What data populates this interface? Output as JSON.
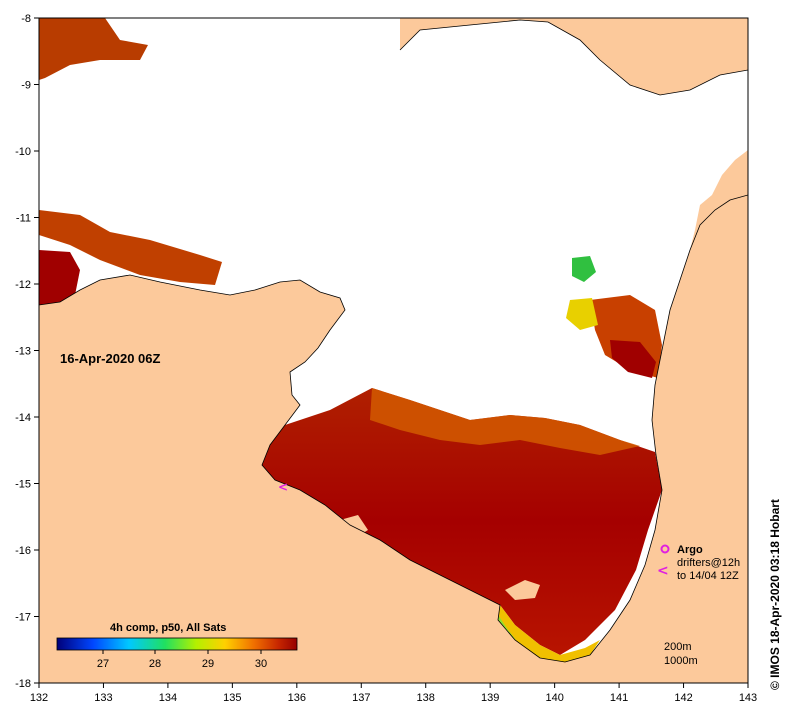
{
  "map": {
    "date_label": "16-Apr-2020 06Z",
    "lon_ticks": [
      "132",
      "133",
      "134",
      "135",
      "136",
      "137",
      "138",
      "139",
      "140",
      "141",
      "142",
      "143"
    ],
    "lat_ticks": [
      "-8",
      "-9",
      "-10",
      "-11",
      "-12",
      "-13",
      "-14",
      "-15",
      "-16",
      "-17",
      "-18"
    ],
    "lon_range": [
      132,
      143
    ],
    "lat_range": [
      -18,
      -8
    ],
    "colors": {
      "land": "#fcc99b",
      "sst_hot": "#a80000",
      "sst_warm": "#c83c00",
      "sst_mid": "#e06a00",
      "sst_cool": "#f0b400",
      "cloud": "#ffffff"
    }
  },
  "colorbar": {
    "title": "4h comp, p50, All Sats",
    "ticks": [
      "27",
      "28",
      "29",
      "30"
    ]
  },
  "legend": {
    "argo": "Argo",
    "drifters": "drifters@12h",
    "drifters_to": "to 14/04 12Z",
    "contour_200": "200m",
    "contour_1000": "1000m"
  },
  "credit": "© IMOS 18-Apr-2020 03:18 Hobart"
}
